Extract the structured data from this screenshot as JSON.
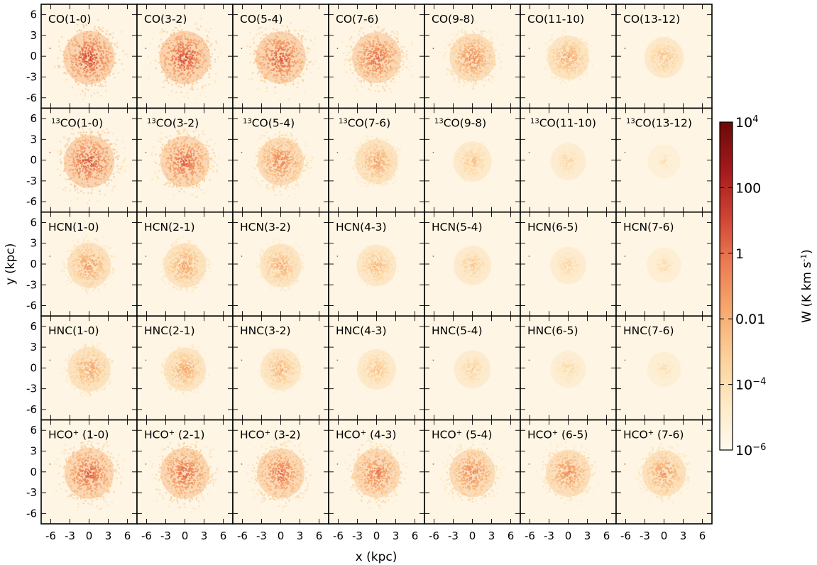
{
  "chart_data": {
    "type": "heatmap",
    "layout": {
      "rows": 5,
      "columns": 7
    },
    "xlabel": "x (kpc)",
    "ylabel": "y (kpc)",
    "x_ticks": [
      "-6",
      "-3",
      "0",
      "3",
      "6"
    ],
    "y_ticks": [
      "6",
      "3",
      "0",
      "-3",
      "-6"
    ],
    "xlim": [
      -7.5,
      7.5
    ],
    "ylim": [
      -7.5,
      7.5
    ],
    "colorbar": {
      "label": "W (K km s",
      "label_sup": "-1",
      "label_close": ")",
      "scale": "log",
      "range": [
        -6,
        4
      ],
      "ticks": [
        {
          "exp": 4,
          "base": "10",
          "sup": "4"
        },
        {
          "exp": 2,
          "base": "100",
          "sup": ""
        },
        {
          "exp": 0,
          "base": "1",
          "sup": ""
        },
        {
          "exp": -2,
          "base": "0.01",
          "sup": ""
        },
        {
          "exp": -4,
          "base": "10",
          "sup": "−4"
        },
        {
          "exp": -6,
          "base": "10",
          "sup": "−6"
        }
      ],
      "colors": [
        "#fffaf0",
        "#fde9c4",
        "#fbd09a",
        "#f6a86e",
        "#ec7c52",
        "#cd4233",
        "#a3191b",
        "#6b0909"
      ]
    },
    "panels": [
      [
        {
          "pre": "",
          "species": "CO",
          "transition": "(1-0)",
          "peak_log_w": 1.6
        },
        {
          "pre": "",
          "species": "CO",
          "transition": "(3-2)",
          "peak_log_w": 1.5
        },
        {
          "pre": "",
          "species": "CO",
          "transition": "(5-4)",
          "peak_log_w": 1.3
        },
        {
          "pre": "",
          "species": "CO",
          "transition": "(7-6)",
          "peak_log_w": 0.9
        },
        {
          "pre": "",
          "species": "CO",
          "transition": "(9-8)",
          "peak_log_w": 0.0
        },
        {
          "pre": "",
          "species": "CO",
          "transition": "(11-10)",
          "peak_log_w": -1.0
        },
        {
          "pre": "",
          "species": "CO",
          "transition": "(13-12)",
          "peak_log_w": -1.8
        }
      ],
      [
        {
          "pre": "13",
          "species": "CO",
          "transition": "(1-0)",
          "peak_log_w": 1.4
        },
        {
          "pre": "13",
          "species": "CO",
          "transition": "(3-2)",
          "peak_log_w": 1.0
        },
        {
          "pre": "13",
          "species": "CO",
          "transition": "(5-4)",
          "peak_log_w": 0.2
        },
        {
          "pre": "13",
          "species": "CO",
          "transition": "(7-6)",
          "peak_log_w": -0.8
        },
        {
          "pre": "13",
          "species": "CO",
          "transition": "(9-8)",
          "peak_log_w": -2.0
        },
        {
          "pre": "13",
          "species": "CO",
          "transition": "(11-10)",
          "peak_log_w": -2.8
        },
        {
          "pre": "13",
          "species": "CO",
          "transition": "(13-12)",
          "peak_log_w": -3.6
        }
      ],
      [
        {
          "pre": "",
          "species": "HCN",
          "transition": "(1-0)",
          "peak_log_w": -0.6
        },
        {
          "pre": "",
          "species": "HCN",
          "transition": "(2-1)",
          "peak_log_w": -0.8
        },
        {
          "pre": "",
          "species": "HCN",
          "transition": "(3-2)",
          "peak_log_w": -1.1
        },
        {
          "pre": "",
          "species": "HCN",
          "transition": "(4-3)",
          "peak_log_w": -1.6
        },
        {
          "pre": "",
          "species": "HCN",
          "transition": "(5-4)",
          "peak_log_w": -2.2
        },
        {
          "pre": "",
          "species": "HCN",
          "transition": "(6-5)",
          "peak_log_w": -2.7
        },
        {
          "pre": "",
          "species": "HCN",
          "transition": "(7-6)",
          "peak_log_w": -3.2
        }
      ],
      [
        {
          "pre": "",
          "species": "HNC",
          "transition": "(1-0)",
          "peak_log_w": -0.8
        },
        {
          "pre": "",
          "species": "HNC",
          "transition": "(2-1)",
          "peak_log_w": -1.0
        },
        {
          "pre": "",
          "species": "HNC",
          "transition": "(3-2)",
          "peak_log_w": -1.4
        },
        {
          "pre": "",
          "species": "HNC",
          "transition": "(4-3)",
          "peak_log_w": -1.9
        },
        {
          "pre": "",
          "species": "HNC",
          "transition": "(5-4)",
          "peak_log_w": -2.5
        },
        {
          "pre": "",
          "species": "HNC",
          "transition": "(6-5)",
          "peak_log_w": -2.9
        },
        {
          "pre": "",
          "species": "HNC",
          "transition": "(7-6)",
          "peak_log_w": -3.3
        }
      ],
      [
        {
          "pre": "",
          "species": "HCO",
          "sup": "+",
          "transition": "(1-0)",
          "peak_log_w": 1.0
        },
        {
          "pre": "",
          "species": "HCO",
          "sup": "+",
          "transition": "(2-1)",
          "peak_log_w": 0.9
        },
        {
          "pre": "",
          "species": "HCO",
          "sup": "+",
          "transition": "(3-2)",
          "peak_log_w": 0.6
        },
        {
          "pre": "",
          "species": "HCO",
          "sup": "+",
          "transition": "(4-3)",
          "peak_log_w": 0.4
        },
        {
          "pre": "",
          "species": "HCO",
          "sup": "+",
          "transition": "(5-4)",
          "peak_log_w": 0.1
        },
        {
          "pre": "",
          "species": "HCO",
          "sup": "+",
          "transition": "(6-5)",
          "peak_log_w": -0.2
        },
        {
          "pre": "",
          "species": "HCO",
          "sup": "+",
          "transition": "(7-6)",
          "peak_log_w": -0.5
        }
      ]
    ]
  }
}
